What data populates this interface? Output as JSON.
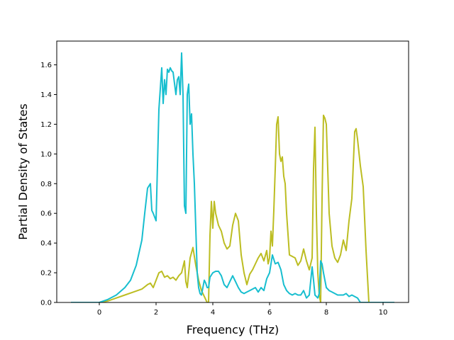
{
  "chart_data": {
    "type": "line",
    "title": "",
    "xlabel": "Frequency (THz)",
    "ylabel": "Partial Density of States",
    "xlim": [
      -1.5,
      10.9
    ],
    "ylim": [
      0.0,
      1.76
    ],
    "xticks": [
      0,
      2,
      4,
      6,
      8,
      10
    ],
    "yticks": [
      0.0,
      0.2,
      0.4,
      0.6,
      0.8,
      1.0,
      1.2,
      1.4,
      1.6
    ],
    "grid": false,
    "legend": "none",
    "series": [
      {
        "color": "#bcbd22",
        "x": [
          -1.0,
          0.0,
          0.3,
          0.6,
          0.9,
          1.2,
          1.5,
          1.7,
          1.8,
          1.9,
          2.0,
          2.1,
          2.2,
          2.3,
          2.4,
          2.5,
          2.6,
          2.7,
          2.8,
          2.9,
          3.0,
          3.05,
          3.1,
          3.2,
          3.3,
          3.4,
          3.5,
          3.6,
          3.7,
          3.8,
          3.85,
          3.9,
          3.95,
          4.0,
          4.05,
          4.1,
          4.2,
          4.3,
          4.4,
          4.5,
          4.6,
          4.7,
          4.8,
          4.9,
          5.0,
          5.1,
          5.2,
          5.3,
          5.4,
          5.5,
          5.6,
          5.7,
          5.8,
          5.9,
          5.95,
          6.0,
          6.05,
          6.1,
          6.15,
          6.2,
          6.25,
          6.3,
          6.35,
          6.4,
          6.45,
          6.5,
          6.55,
          6.6,
          6.7,
          6.8,
          6.9,
          7.0,
          7.1,
          7.2,
          7.3,
          7.4,
          7.5,
          7.55,
          7.6,
          7.65,
          7.7,
          7.75,
          7.8,
          7.85,
          7.9,
          7.95,
          8.0,
          8.05,
          8.1,
          8.2,
          8.3,
          8.4,
          8.5,
          8.6,
          8.7,
          8.8,
          8.9,
          9.0,
          9.05,
          9.1,
          9.2,
          9.3,
          9.4,
          9.5,
          9.6,
          10.4
        ],
        "y": [
          0.0,
          0.0,
          0.01,
          0.03,
          0.05,
          0.07,
          0.09,
          0.12,
          0.13,
          0.1,
          0.15,
          0.2,
          0.21,
          0.17,
          0.18,
          0.16,
          0.17,
          0.15,
          0.18,
          0.2,
          0.28,
          0.14,
          0.1,
          0.3,
          0.37,
          0.25,
          0.15,
          0.08,
          0.04,
          0.0,
          0.0,
          0.45,
          0.68,
          0.5,
          0.68,
          0.6,
          0.52,
          0.48,
          0.4,
          0.36,
          0.38,
          0.52,
          0.6,
          0.55,
          0.32,
          0.2,
          0.12,
          0.19,
          0.22,
          0.26,
          0.3,
          0.33,
          0.28,
          0.35,
          0.26,
          0.3,
          0.48,
          0.38,
          0.62,
          0.9,
          1.2,
          1.25,
          1.0,
          0.95,
          0.98,
          0.85,
          0.8,
          0.6,
          0.32,
          0.31,
          0.3,
          0.25,
          0.28,
          0.36,
          0.28,
          0.22,
          0.3,
          0.9,
          1.18,
          0.6,
          0.2,
          0.05,
          0.0,
          0.7,
          1.26,
          1.24,
          1.2,
          0.9,
          0.6,
          0.38,
          0.3,
          0.27,
          0.32,
          0.42,
          0.35,
          0.55,
          0.7,
          1.15,
          1.17,
          1.1,
          0.92,
          0.78,
          0.35,
          0.0,
          0.0,
          0.0
        ]
      },
      {
        "color": "#17becf",
        "x": [
          -1.0,
          0.0,
          0.3,
          0.6,
          0.9,
          1.1,
          1.3,
          1.5,
          1.6,
          1.7,
          1.8,
          1.85,
          1.9,
          2.0,
          2.1,
          2.2,
          2.25,
          2.3,
          2.35,
          2.4,
          2.45,
          2.5,
          2.55,
          2.6,
          2.7,
          2.75,
          2.8,
          2.85,
          2.9,
          2.95,
          3.0,
          3.05,
          3.1,
          3.15,
          3.2,
          3.25,
          3.3,
          3.35,
          3.4,
          3.45,
          3.5,
          3.55,
          3.6,
          3.7,
          3.75,
          3.8,
          3.85,
          3.9,
          4.0,
          4.1,
          4.2,
          4.3,
          4.4,
          4.5,
          4.6,
          4.7,
          4.8,
          4.9,
          5.0,
          5.1,
          5.2,
          5.3,
          5.4,
          5.5,
          5.6,
          5.7,
          5.8,
          5.9,
          6.0,
          6.1,
          6.2,
          6.3,
          6.4,
          6.5,
          6.6,
          6.7,
          6.8,
          6.9,
          7.0,
          7.1,
          7.2,
          7.3,
          7.4,
          7.5,
          7.55,
          7.6,
          7.65,
          7.7,
          7.75,
          7.8,
          7.85,
          7.9,
          7.95,
          8.0,
          8.1,
          8.2,
          8.3,
          8.4,
          8.5,
          8.6,
          8.7,
          8.8,
          8.9,
          9.0,
          9.1,
          9.2,
          9.3,
          9.4,
          9.5,
          10.4
        ],
        "y": [
          0.0,
          0.0,
          0.02,
          0.05,
          0.1,
          0.15,
          0.25,
          0.42,
          0.6,
          0.77,
          0.8,
          0.62,
          0.6,
          0.55,
          1.3,
          1.58,
          1.34,
          1.5,
          1.4,
          1.57,
          1.55,
          1.58,
          1.56,
          1.55,
          1.4,
          1.5,
          1.52,
          1.4,
          1.68,
          1.4,
          0.65,
          0.6,
          1.4,
          1.47,
          1.2,
          1.27,
          1.0,
          0.8,
          0.5,
          0.2,
          0.1,
          0.06,
          0.05,
          0.15,
          0.13,
          0.1,
          0.1,
          0.17,
          0.2,
          0.21,
          0.21,
          0.18,
          0.12,
          0.1,
          0.14,
          0.18,
          0.14,
          0.1,
          0.07,
          0.06,
          0.07,
          0.08,
          0.09,
          0.1,
          0.07,
          0.1,
          0.08,
          0.16,
          0.2,
          0.32,
          0.26,
          0.27,
          0.22,
          0.12,
          0.08,
          0.06,
          0.05,
          0.06,
          0.05,
          0.05,
          0.08,
          0.03,
          0.05,
          0.24,
          0.15,
          0.05,
          0.04,
          0.03,
          0.06,
          0.28,
          0.26,
          0.2,
          0.15,
          0.1,
          0.08,
          0.07,
          0.06,
          0.05,
          0.05,
          0.05,
          0.06,
          0.04,
          0.05,
          0.04,
          0.03,
          0.0,
          0.0,
          0.0,
          0.0,
          0.0
        ]
      }
    ]
  }
}
